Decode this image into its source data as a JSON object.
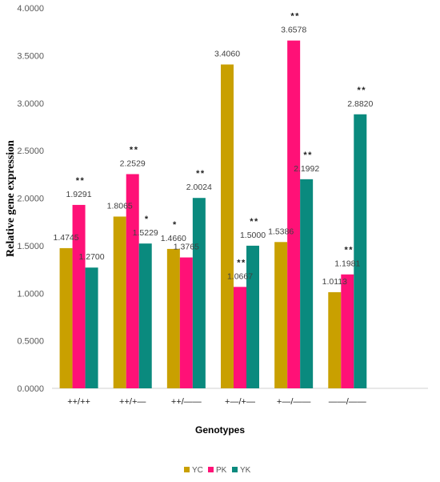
{
  "chart_data": {
    "type": "bar",
    "xlabel": "Genotypes",
    "ylabel": "Relative gene expression",
    "ylim": [
      0,
      4
    ],
    "yticks": [
      "0.0000",
      "0.5000",
      "1.0000",
      "1.5000",
      "2.0000",
      "2.5000",
      "3.0000",
      "3.5000",
      "4.0000"
    ],
    "grid": false,
    "legend_position": "bottom-center",
    "categories": [
      "++/++",
      "++/+—",
      "++/——",
      "+—/+—",
      "+—/——",
      "——/——"
    ],
    "series": [
      {
        "name": "YC",
        "color": "#C9A000",
        "values": [
          1.4745,
          1.8065,
          1.466,
          3.406,
          1.5386,
          1.0113
        ],
        "labels": [
          "1.4745",
          "1.8065",
          "1.4660",
          "3.4060",
          "1.5386",
          "1.0113"
        ],
        "sig": [
          "",
          "",
          "*",
          "",
          "",
          ""
        ]
      },
      {
        "name": "PK",
        "color": "#FF1177",
        "values": [
          1.9291,
          2.2529,
          1.3765,
          1.0667,
          3.6578,
          1.1981
        ],
        "labels": [
          "1.9291",
          "2.2529",
          "1.3765",
          "1.0667",
          "3.6578",
          "1.1981"
        ],
        "sig": [
          "**",
          "**",
          "",
          "**",
          "**",
          "**"
        ]
      },
      {
        "name": "YK",
        "color": "#0A8A7E",
        "values": [
          1.27,
          1.5229,
          2.0024,
          1.5,
          2.1992,
          2.882
        ],
        "labels": [
          "1.2700",
          "1.5229",
          "2.0024",
          "1.5000",
          "2.1992",
          "2.8820"
        ],
        "sig": [
          "",
          "*",
          "**",
          "**",
          "**",
          "**"
        ]
      }
    ]
  }
}
